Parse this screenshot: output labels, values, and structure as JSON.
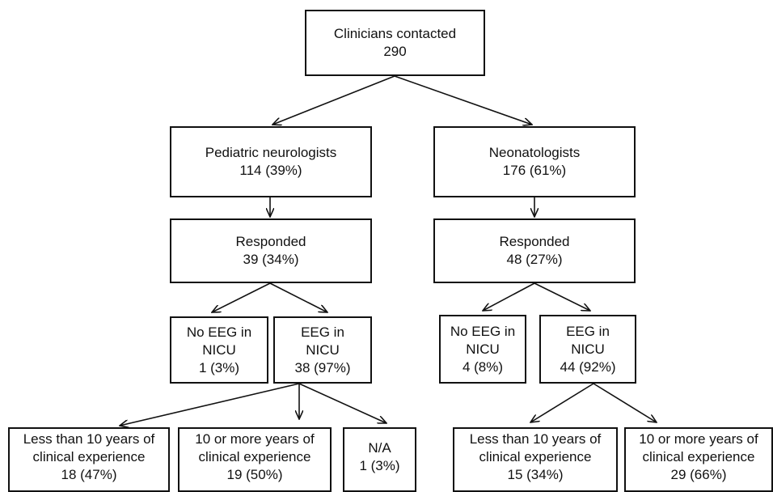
{
  "flowchart": {
    "root": {
      "title": "Clinicians contacted",
      "value": "290"
    },
    "neuro": {
      "group": {
        "title": "Pediatric neurologists",
        "value": "114 (39%)"
      },
      "responded": {
        "title": "Responded",
        "value": "39 (34%)"
      },
      "no_eeg": {
        "line1": "No EEG in",
        "line2": "NICU",
        "value": "1 (3%)"
      },
      "eeg": {
        "line1": "EEG in",
        "line2": "NICU",
        "value": "38 (97%)"
      },
      "less10": {
        "line1": "Less than 10 years of",
        "line2": "clinical experience",
        "value": "18 (47%)"
      },
      "more10": {
        "line1": "10 or more years of",
        "line2": "clinical experience",
        "value": "19 (50%)"
      },
      "na": {
        "title": "N/A",
        "value": "1 (3%)"
      }
    },
    "neo": {
      "group": {
        "title": "Neonatologists",
        "value": "176 (61%)"
      },
      "responded": {
        "title": "Responded",
        "value": "48 (27%)"
      },
      "no_eeg": {
        "line1": "No EEG in",
        "line2": "NICU",
        "value": "4 (8%)"
      },
      "eeg": {
        "line1": "EEG in",
        "line2": "NICU",
        "value": "44 (92%)"
      },
      "less10": {
        "line1": "Less than 10 years of",
        "line2": "clinical experience",
        "value": "15 (34%)"
      },
      "more10": {
        "line1": "10 or more years of",
        "line2": "clinical experience",
        "value": "29 (66%)"
      }
    }
  }
}
